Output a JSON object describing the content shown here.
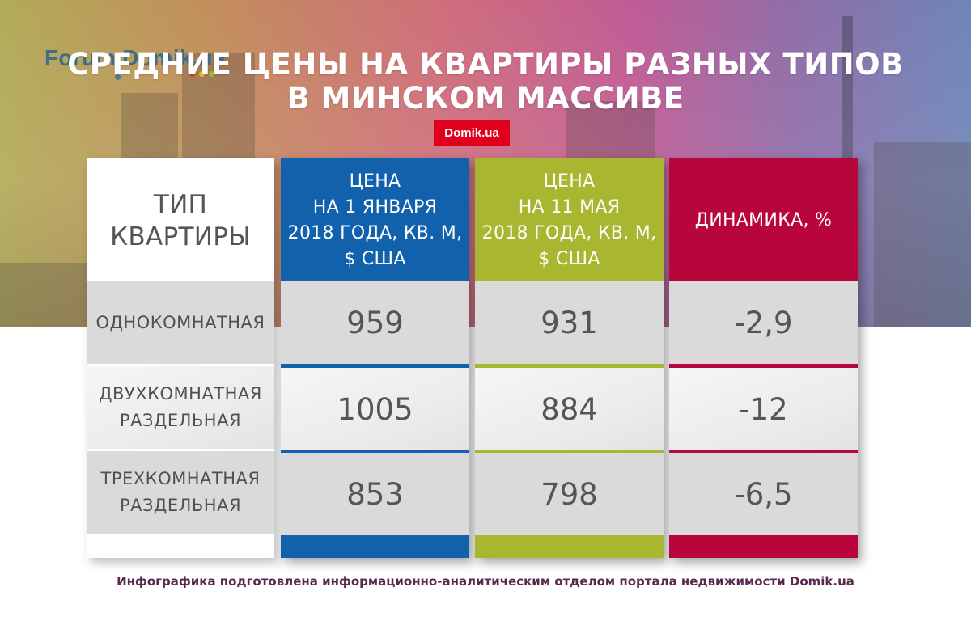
{
  "logo": {
    "text": "Forum.Domik.ua"
  },
  "title": {
    "line1": "СРЕДНИЕ ЦЕНЫ НА КВАРТИРЫ РАЗНЫХ ТИПОВ",
    "line2": "В МИНСКОМ МАССИВЕ"
  },
  "badge": "Domik.ua",
  "colors": {
    "jan": "#1261ad",
    "may": "#a9b630",
    "dynamics": "#b8063c",
    "badge": "#e0001b"
  },
  "chart_data": {
    "type": "table",
    "columns": [
      {
        "key": "type",
        "lines": [
          "ТИП",
          "КВАРТИРЫ"
        ]
      },
      {
        "key": "jan",
        "lines": [
          "ЦЕНА",
          "НА 1 ЯНВАРЯ",
          "2018 ГОДА, КВ. М,",
          "$ США"
        ]
      },
      {
        "key": "may",
        "lines": [
          "ЦЕНА",
          "НА 11 МАЯ",
          "2018 ГОДА, КВ. М,",
          "$ США"
        ]
      },
      {
        "key": "dynamics",
        "lines": [
          "ДИНАМИКА, %"
        ]
      }
    ],
    "rows": [
      {
        "type": [
          "ОДНОКОМНАТНАЯ"
        ],
        "jan": "959",
        "may": "931",
        "dynamics": "-2,9"
      },
      {
        "type": [
          "ДВУХКОМНАТНАЯ",
          "РАЗДЕЛЬНАЯ"
        ],
        "jan": "1005",
        "may": "884",
        "dynamics": "-12"
      },
      {
        "type": [
          "ТРЕХКОМНАТНАЯ",
          "РАЗДЕЛЬНАЯ"
        ],
        "jan": "853",
        "may": "798",
        "dynamics": "-6,5"
      }
    ]
  },
  "footer": "Инфографика подготовлена информационно-аналитическим отделом портала недвижимости Domik.ua"
}
